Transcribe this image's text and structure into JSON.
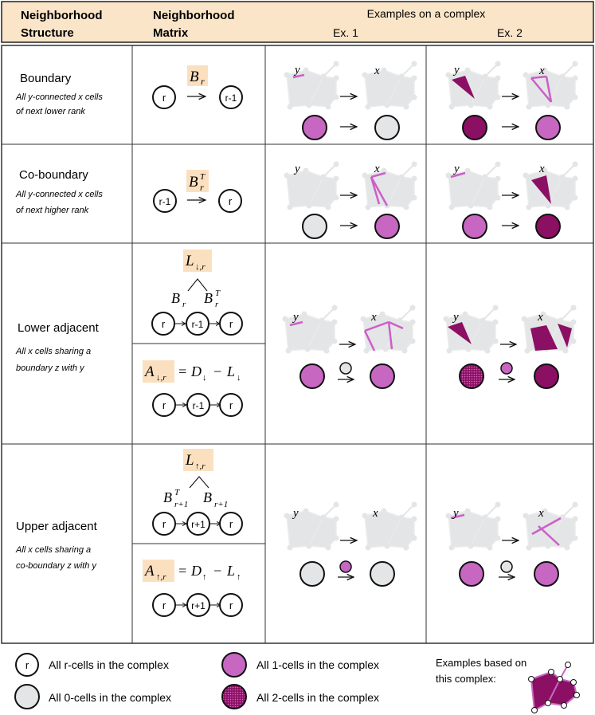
{
  "header": {
    "col1_line1": "Neighborhood",
    "col1_line2": "Structure",
    "col2_line1": "Neighborhood",
    "col2_line2": "Matrix",
    "examples_title": "Examples on a complex",
    "ex1": "Ex. 1",
    "ex2": "Ex. 2"
  },
  "rows": [
    {
      "title": "Boundary",
      "desc_line1": "All y-connected x cells",
      "desc_line2": "of next lower rank"
    },
    {
      "title": "Co-boundary",
      "desc_line1": "All y-connected x cells",
      "desc_line2": "of next higher rank"
    },
    {
      "title": "Lower adjacent",
      "desc_line1": "All x cells sharing a",
      "desc_line2": "boundary z with y"
    },
    {
      "title": "Upper adjacent",
      "desc_line1": "All x cells sharing a",
      "desc_line2": "co-boundary z with y"
    }
  ],
  "math": {
    "B": "B",
    "r": "r",
    "T": "T",
    "rp1": "r+1",
    "L": "L",
    "A": "A",
    "D": "D",
    "down": "↓,r",
    "up": "↑,r",
    "down_s": "↓",
    "up_s": "↑",
    "eq": "=",
    "minus": "−",
    "x": "x",
    "y": "y",
    "node_r": "r",
    "node_rm1": "r-1",
    "node_rp1": "r+1"
  },
  "legend": {
    "r_symbol": "r",
    "r_cells": "All r-cells in the complex",
    "zero_cells": "All 0-cells in the complex",
    "one_cells": "All 1-cells in the complex",
    "two_cells": "All 2-cells in the complex",
    "examples_line1": "Examples based on",
    "examples_line2": "this complex:"
  },
  "colors": {
    "header_bg": "#fbe5c8",
    "label_bg": "#fbe0c0",
    "grey_cell": "#e3e5e6",
    "one_cell": "#c767c2",
    "two_cell": "#8b0f63",
    "highlight_line": "#cc5fc7"
  }
}
